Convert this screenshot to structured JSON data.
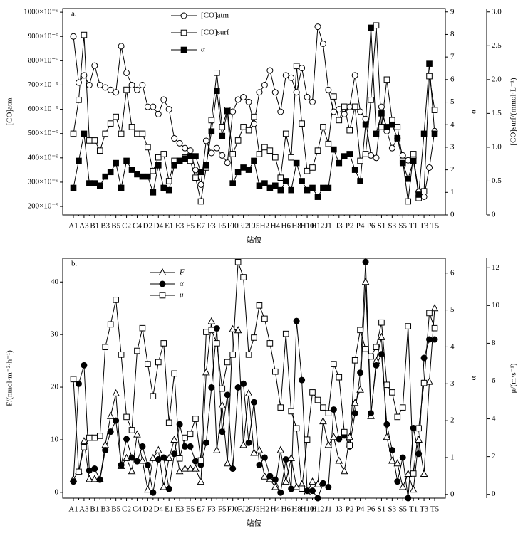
{
  "chart_data": [
    {
      "type": "line",
      "title": "a.",
      "x_label": "站位",
      "y_label": "[CO]atm",
      "y2_label": "α",
      "y3_label": "[CO]surf/(mmol·L⁻¹)",
      "categories": [
        "A1",
        null,
        "A3",
        null,
        "B1",
        null,
        "B3",
        null,
        "B5",
        null,
        "C2",
        null,
        "C4",
        null,
        "D2",
        null,
        "D4",
        null,
        "E1",
        null,
        "E3",
        null,
        "E5",
        null,
        "E7",
        null,
        "F3",
        null,
        "F5",
        null,
        "FJ0",
        null,
        "FJ2",
        null,
        "FJ5",
        null,
        "H2",
        null,
        "H4",
        null,
        "H6",
        null,
        "H8",
        null,
        "H10",
        null,
        "H12",
        null,
        "J1",
        null,
        "J3",
        null,
        "P2",
        null,
        "P4",
        null,
        "P6",
        null,
        "S1",
        null,
        "S3",
        null,
        "S5",
        null,
        "T1",
        null,
        "T3",
        null,
        "T5"
      ],
      "ylim": [
        165,
        1015
      ],
      "yticks": [
        {
          "value": 200,
          "label": "200×10⁻⁹"
        },
        {
          "value": 300,
          "label": "300×10⁻⁹"
        },
        {
          "value": 400,
          "label": "400×10⁻⁹"
        },
        {
          "value": 500,
          "label": "500×10⁻⁹"
        },
        {
          "value": 600,
          "label": "600×10⁻⁹"
        },
        {
          "value": 700,
          "label": "700×10⁻⁹"
        },
        {
          "value": 800,
          "label": "800×10⁻⁹"
        },
        {
          "value": 900,
          "label": "900×10⁻⁹"
        },
        {
          "value": 1000,
          "label": "1000×10⁻⁹"
        }
      ],
      "y2lim": [
        0,
        9.15
      ],
      "y2ticks": [
        0,
        1,
        2,
        3,
        4,
        5,
        6,
        7,
        8,
        9
      ],
      "y3lim": [
        0,
        3.05
      ],
      "y3ticks": [
        0,
        0.5,
        {
          "value": 1,
          "label": "1.0"
        },
        1.5,
        {
          "value": 2,
          "label": "2.0"
        },
        2.5,
        {
          "value": 3,
          "label": "3.0"
        }
      ],
      "series": [
        {
          "name": "[CO]atm",
          "axis": "y",
          "marker": "circle-open",
          "color": "#000000",
          "values": [
            900,
            710,
            740,
            700,
            780,
            700,
            690,
            680,
            670,
            860,
            750,
            700,
            680,
            700,
            610,
            610,
            580,
            640,
            600,
            480,
            460,
            440,
            430,
            350,
            290,
            470,
            420,
            440,
            410,
            380,
            590,
            640,
            650,
            630,
            540,
            670,
            700,
            760,
            670,
            590,
            740,
            730,
            670,
            770,
            650,
            630,
            940,
            870,
            680,
            590,
            600,
            580,
            610,
            740,
            590,
            560,
            410,
            400,
            610,
            510,
            440,
            480,
            410,
            390,
            400,
            260,
            240,
            360,
            510
          ]
        },
        {
          "name": "[CO]surf",
          "axis": "y3",
          "marker": "square-open",
          "color": "#000000",
          "values": [
            1.2,
            1.7,
            2.66,
            1.1,
            1.1,
            0.95,
            1.2,
            1.35,
            1.45,
            1.2,
            1.85,
            1.3,
            1.2,
            1.2,
            1.0,
            0.65,
            0.85,
            0.9,
            0.5,
            0.8,
            0.8,
            0.85,
            0.8,
            0.55,
            0.2,
            0.7,
            1.4,
            2.1,
            1.3,
            1.55,
            0.9,
            1.1,
            1.3,
            1.25,
            1.45,
            0.9,
            1.0,
            0.95,
            0.85,
            0.55,
            1.2,
            0.85,
            2.2,
            1.35,
            0.65,
            0.7,
            0.95,
            1.3,
            1.05,
            1.75,
            1.4,
            1.6,
            1.25,
            1.6,
            0.8,
            0.9,
            1.7,
            2.8,
            1.3,
            2.0,
            1.4,
            1.3,
            0.8,
            0.2,
            0.9,
            0.25,
            0.35,
            2.05,
            1.55
          ]
        },
        {
          "name": "α",
          "axis": "y2",
          "marker": "square-filled",
          "color": "#000000",
          "values": [
            1.2,
            2.4,
            3.6,
            1.4,
            1.4,
            1.3,
            1.7,
            1.9,
            2.3,
            1.2,
            2.4,
            2.0,
            1.8,
            1.7,
            1.7,
            1.0,
            2.2,
            1.2,
            1.1,
            2.2,
            2.4,
            2.5,
            2.6,
            2.6,
            1.9,
            2.2,
            3.7,
            5.5,
            3.5,
            4.6,
            1.4,
            1.9,
            2.1,
            2.0,
            2.4,
            1.3,
            1.4,
            1.2,
            1.3,
            1.1,
            1.5,
            1.1,
            2.3,
            1.5,
            1.1,
            1.2,
            0.8,
            1.2,
            1.2,
            2.9,
            2.3,
            2.6,
            2.7,
            2.0,
            1.5,
            4.0,
            8.3,
            3.6,
            4.5,
            3.9,
            4.0,
            3.4,
            2.3,
            1.6,
            2.4,
            0.9,
            3.6,
            6.7,
            3.6
          ]
        }
      ]
    },
    {
      "type": "line",
      "title": "b.",
      "x_label": "站位",
      "y_label": "F/(nmol·m⁻²·h⁻¹)",
      "y2_label": "α",
      "y3_label": "μ/(m·s⁻¹)",
      "categories": [
        "A1",
        null,
        "A3",
        null,
        "B1",
        null,
        "B3",
        null,
        "B5",
        null,
        "C2",
        null,
        "C4",
        null,
        "D2",
        null,
        "D4",
        null,
        "E1",
        null,
        "E3",
        null,
        "E5",
        null,
        "E7",
        null,
        "F3",
        null,
        "F5",
        null,
        "FJ0",
        null,
        "FJ2",
        null,
        "FJ5",
        null,
        "H2",
        null,
        "H4",
        null,
        "H6",
        null,
        "H8",
        null,
        "H10",
        null,
        "H12",
        null,
        "J1",
        null,
        "J3",
        null,
        "P2",
        null,
        "P4",
        null,
        "P6",
        null,
        "S1",
        null,
        "S3",
        null,
        "S5",
        null,
        "T1",
        null,
        "T3",
        null,
        "T5"
      ],
      "ylim": [
        -1.1,
        44.5
      ],
      "yticks": [
        0,
        10,
        20,
        30,
        40
      ],
      "y2lim": [
        -0.1,
        6.4
      ],
      "y2ticks": [
        0,
        1,
        2,
        3,
        4,
        5,
        6
      ],
      "y3lim": [
        -0.2,
        12.5
      ],
      "y3ticks": [
        0,
        2,
        4,
        6,
        8,
        10,
        12
      ],
      "series": [
        {
          "name": "F",
          "axis": "y",
          "marker": "triangle-open",
          "color": "#000000",
          "values": [
            2.5,
            4,
            9.7,
            2.5,
            2.5,
            2.5,
            9,
            14.5,
            18.8,
            5,
            6.5,
            4,
            11,
            6,
            0.5,
            6.5,
            8,
            1,
            6.5,
            10,
            4,
            4.5,
            4.5,
            4.5,
            2,
            22.8,
            32.5,
            8,
            16.5,
            5.5,
            31,
            30.8,
            9,
            18.8,
            7.5,
            8,
            3,
            2.5,
            1,
            8,
            2,
            6.5,
            1,
            1.5,
            0,
            2,
            1.5,
            13.5,
            9,
            10.5,
            6,
            4,
            10.5,
            17,
            19.5,
            40,
            14.5,
            25,
            29.5,
            10.5,
            6,
            5.5,
            1,
            3.5,
            0.5,
            10,
            3.5,
            21,
            35
          ]
        },
        {
          "name": "α",
          "axis": "y2",
          "marker": "circle-filled",
          "color": "#000000",
          "values": [
            0.35,
            3.0,
            3.5,
            0.65,
            0.7,
            0.4,
            1.2,
            1.7,
            2.0,
            0.8,
            1.5,
            1.0,
            0.9,
            1.3,
            0.8,
            0.05,
            0.95,
            1.0,
            0.15,
            1.1,
            1.9,
            1.3,
            1.3,
            0.9,
            0.8,
            1.4,
            2.9,
            4.5,
            1.7,
            2.7,
            0.7,
            2.9,
            3.0,
            1.4,
            2.5,
            0.8,
            1.0,
            0.5,
            0.4,
            0.05,
            0.95,
            0.15,
            4.7,
            3.1,
            0.1,
            0.1,
            -0.1,
            0.3,
            0.2,
            2.3,
            1.5,
            1.6,
            1.3,
            2.2,
            3.3,
            6.3,
            2.2,
            3.5,
            3.8,
            1.9,
            1.2,
            0.35,
            1.0,
            -0.1,
            1.8,
            1.1,
            3.7,
            4.2,
            4.2
          ]
        },
        {
          "name": "μ",
          "axis": "y3",
          "marker": "square-open",
          "color": "#000000",
          "values": [
            6.1,
            1.2,
            2.5,
            3.0,
            3.0,
            3.1,
            7.8,
            9.0,
            10.3,
            7.4,
            4.1,
            3.4,
            7.6,
            8.8,
            6.9,
            5.2,
            7.0,
            8.0,
            3.8,
            6.4,
            1.9,
            3.0,
            3.2,
            4.0,
            1.8,
            8.6,
            8.7,
            8.0,
            5.6,
            7.0,
            7.4,
            12.3,
            11.5,
            7.4,
            8.3,
            10.0,
            9.3,
            8.0,
            6.5,
            4.6,
            8.5,
            4.4,
            3.5,
            0.3,
            2.9,
            5.4,
            5.0,
            4.6,
            4.3,
            6.9,
            6.2,
            3.3,
            2.6,
            7.1,
            8.7,
            7.7,
            7.3,
            7.8,
            9.1,
            5.8,
            5.4,
            4.1,
            4.6,
            8.9,
            1.1,
            3.5,
            5.9,
            9.6,
            8.8
          ]
        }
      ]
    }
  ]
}
